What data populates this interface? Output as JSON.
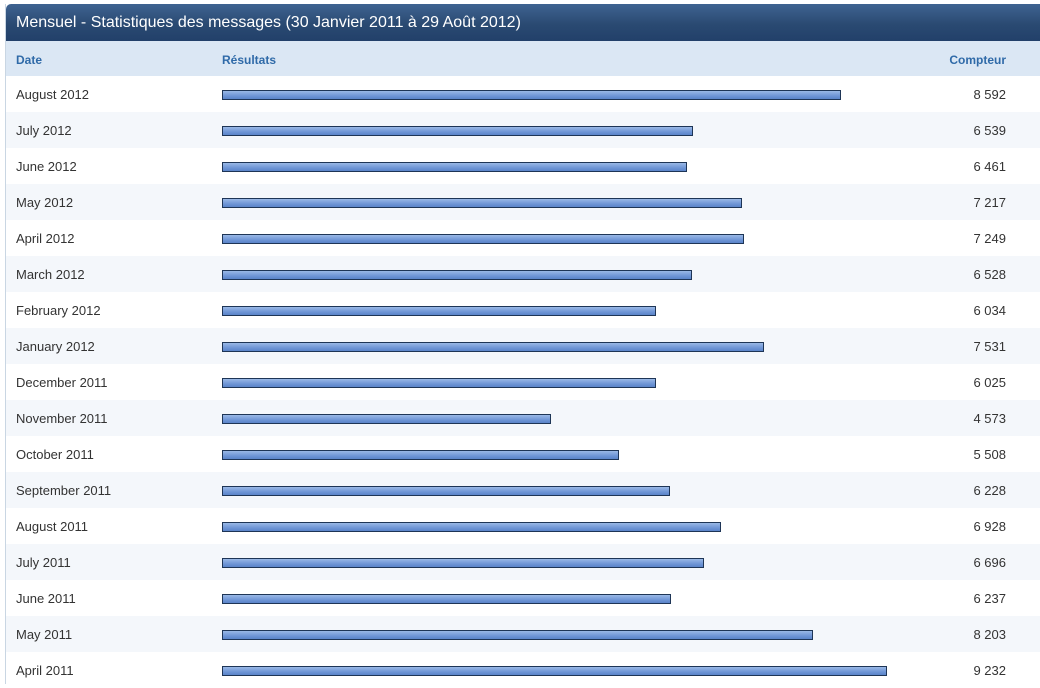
{
  "title": "Mensuel - Statistiques des messages (30 Janvier 2011 à 29 Août 2012)",
  "columns": {
    "date": "Date",
    "results": "Résultats",
    "count": "Compteur"
  },
  "colors": {
    "titlebar": "#2a4a72",
    "header_bg": "#dbe7f4",
    "header_text": "#2f6aa8",
    "bar_fill": "#6f96d6",
    "bar_border": "#1e3556"
  },
  "chart_data": {
    "type": "bar",
    "bar_max": 10000,
    "rows": [
      {
        "date": "August 2012",
        "value": 8592,
        "label": "8 592"
      },
      {
        "date": "July 2012",
        "value": 6539,
        "label": "6 539"
      },
      {
        "date": "June 2012",
        "value": 6461,
        "label": "6 461"
      },
      {
        "date": "May 2012",
        "value": 7217,
        "label": "7 217"
      },
      {
        "date": "April 2012",
        "value": 7249,
        "label": "7 249"
      },
      {
        "date": "March 2012",
        "value": 6528,
        "label": "6 528"
      },
      {
        "date": "February 2012",
        "value": 6034,
        "label": "6 034"
      },
      {
        "date": "January 2012",
        "value": 7531,
        "label": "7 531"
      },
      {
        "date": "December 2011",
        "value": 6025,
        "label": "6 025"
      },
      {
        "date": "November 2011",
        "value": 4573,
        "label": "4 573"
      },
      {
        "date": "October 2011",
        "value": 5508,
        "label": "5 508"
      },
      {
        "date": "September 2011",
        "value": 6228,
        "label": "6 228"
      },
      {
        "date": "August 2011",
        "value": 6928,
        "label": "6 928"
      },
      {
        "date": "July 2011",
        "value": 6696,
        "label": "6 696"
      },
      {
        "date": "June 2011",
        "value": 6237,
        "label": "6 237"
      },
      {
        "date": "May 2011",
        "value": 8203,
        "label": "8 203"
      },
      {
        "date": "April 2011",
        "value": 9232,
        "label": "9 232"
      }
    ]
  }
}
